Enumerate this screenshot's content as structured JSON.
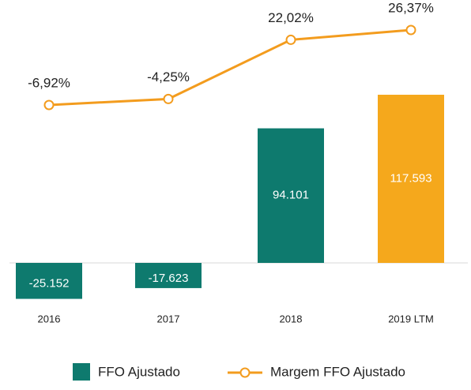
{
  "chart_data": {
    "type": "bar",
    "categories": [
      "2016",
      "2017",
      "2018",
      "2019 LTM"
    ],
    "series": [
      {
        "name": "FFO Ajustado",
        "color": "#0e7a6e",
        "colors": [
          "#0e7a6e",
          "#0e7a6e",
          "#0e7a6e",
          "#f5a81c"
        ],
        "values": [
          -25152,
          -17623,
          94101,
          117593
        ],
        "value_labels": [
          "-25.152",
          "-17.623",
          "94.101",
          "117.593"
        ]
      },
      {
        "name": "Margem FFO Ajustado",
        "color": "#f39c1e",
        "axis": "y2",
        "values": [
          -6.92,
          -4.25,
          22.02,
          26.37
        ],
        "value_labels": [
          "-6,92%",
          "-4,25%",
          "22,02%",
          "26,37%"
        ]
      }
    ],
    "legend": "bottom"
  }
}
